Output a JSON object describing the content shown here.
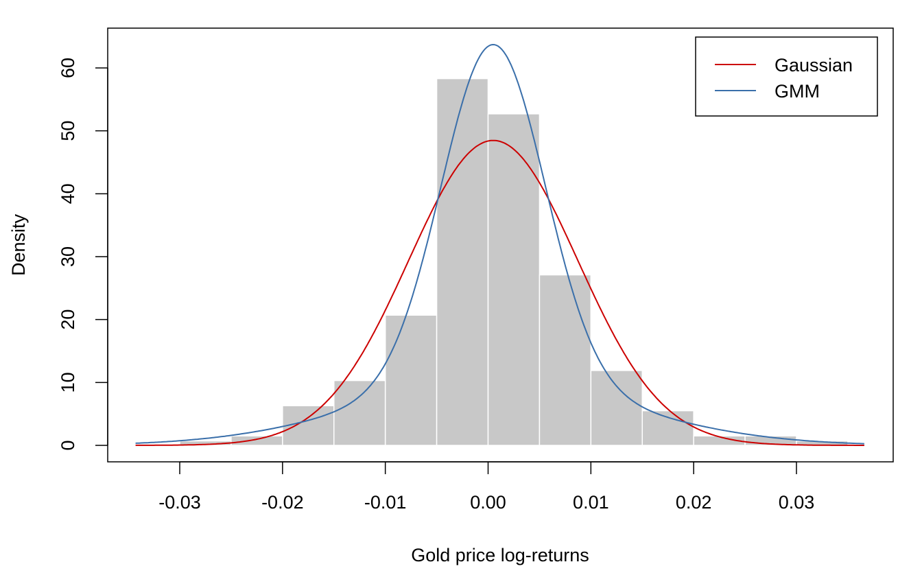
{
  "chart_data": {
    "type": "bar",
    "subtype": "histogram-with-density-curves",
    "title": "",
    "xlabel": "Gold price log-returns",
    "ylabel": "Density",
    "xlim": [
      -0.0343,
      0.0366
    ],
    "ylim": [
      0,
      65
    ],
    "xticks": [
      -0.03,
      -0.02,
      -0.01,
      0.0,
      0.01,
      0.02,
      0.03
    ],
    "xtick_labels": [
      "-0.03",
      "-0.02",
      "-0.01",
      "0.00",
      "0.01",
      "0.02",
      "0.03"
    ],
    "yticks": [
      0,
      10,
      20,
      30,
      40,
      50,
      60
    ],
    "ytick_labels": [
      "0",
      "10",
      "20",
      "30",
      "40",
      "50",
      "60"
    ],
    "grid": false,
    "histogram": {
      "bin_edges": [
        -0.03,
        -0.025,
        -0.02,
        -0.015,
        -0.01,
        -0.005,
        0.0,
        0.005,
        0.01,
        0.015,
        0.02,
        0.025,
        0.03,
        0.035
      ],
      "density": [
        0.7,
        1.5,
        6.3,
        10.3,
        20.7,
        58.3,
        52.7,
        27.1,
        11.9,
        5.5,
        1.5,
        1.5,
        0.7
      ],
      "color": "#c8c8c8"
    },
    "series": [
      {
        "name": "Gaussian",
        "color": "#cc0000",
        "components": [
          {
            "weight": 1.0,
            "mean": 0.0005,
            "sd": 0.00823
          }
        ]
      },
      {
        "name": "GMM",
        "color": "#3a6faa",
        "components": [
          {
            "weight": 0.68,
            "mean": 0.0005,
            "sd": 0.005
          },
          {
            "weight": 0.32,
            "mean": 0.0005,
            "sd": 0.0135
          }
        ]
      }
    ],
    "legend": {
      "position": "top-right",
      "entries": [
        "Gaussian",
        "GMM"
      ]
    }
  }
}
